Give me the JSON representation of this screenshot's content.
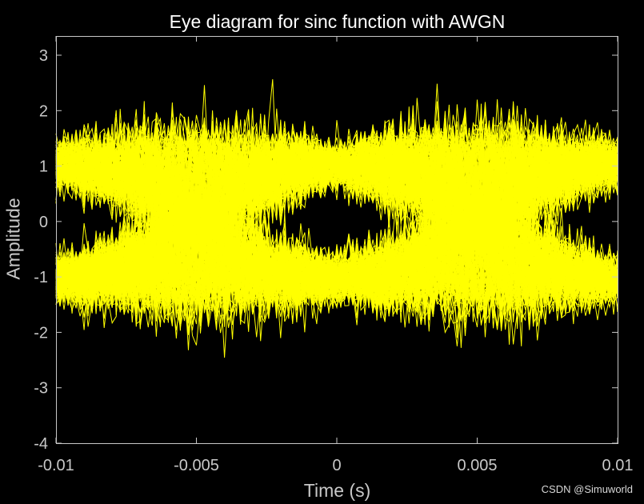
{
  "chart_data": {
    "type": "line",
    "title": "Eye diagram for sinc function with AWGN",
    "xlabel": "Time (s)",
    "ylabel": "Amplitude",
    "xlim": [
      -0.01,
      0.01
    ],
    "ylim": [
      -4,
      3.3
    ],
    "xticks": [
      -0.01,
      -0.005,
      0,
      0.005,
      0.01
    ],
    "xtick_labels": [
      "-0.01",
      "-0.005",
      "0",
      "0.005",
      "0.01"
    ],
    "yticks": [
      -4,
      -3,
      -2,
      -1,
      0,
      1,
      2,
      3
    ],
    "ytick_labels": [
      "-4",
      "-3",
      "-2",
      "-1",
      "0",
      "1",
      "2",
      "3"
    ],
    "grid": false,
    "series": [
      {
        "color": "#ffff00",
        "traces": "many overlaid noisy traces",
        "levels": [
          -1,
          1
        ],
        "eye_centers": [
          -0.01,
          0,
          0.01
        ],
        "eye_opening_height": 0.6,
        "noise_peak_max": 2.8,
        "noise_peak_min": -3.15
      }
    ]
  },
  "watermark": "CSDN @Simuworld",
  "colors": {
    "background": "#000000",
    "trace": "#ffff00",
    "axes": "#c8c8c8"
  }
}
